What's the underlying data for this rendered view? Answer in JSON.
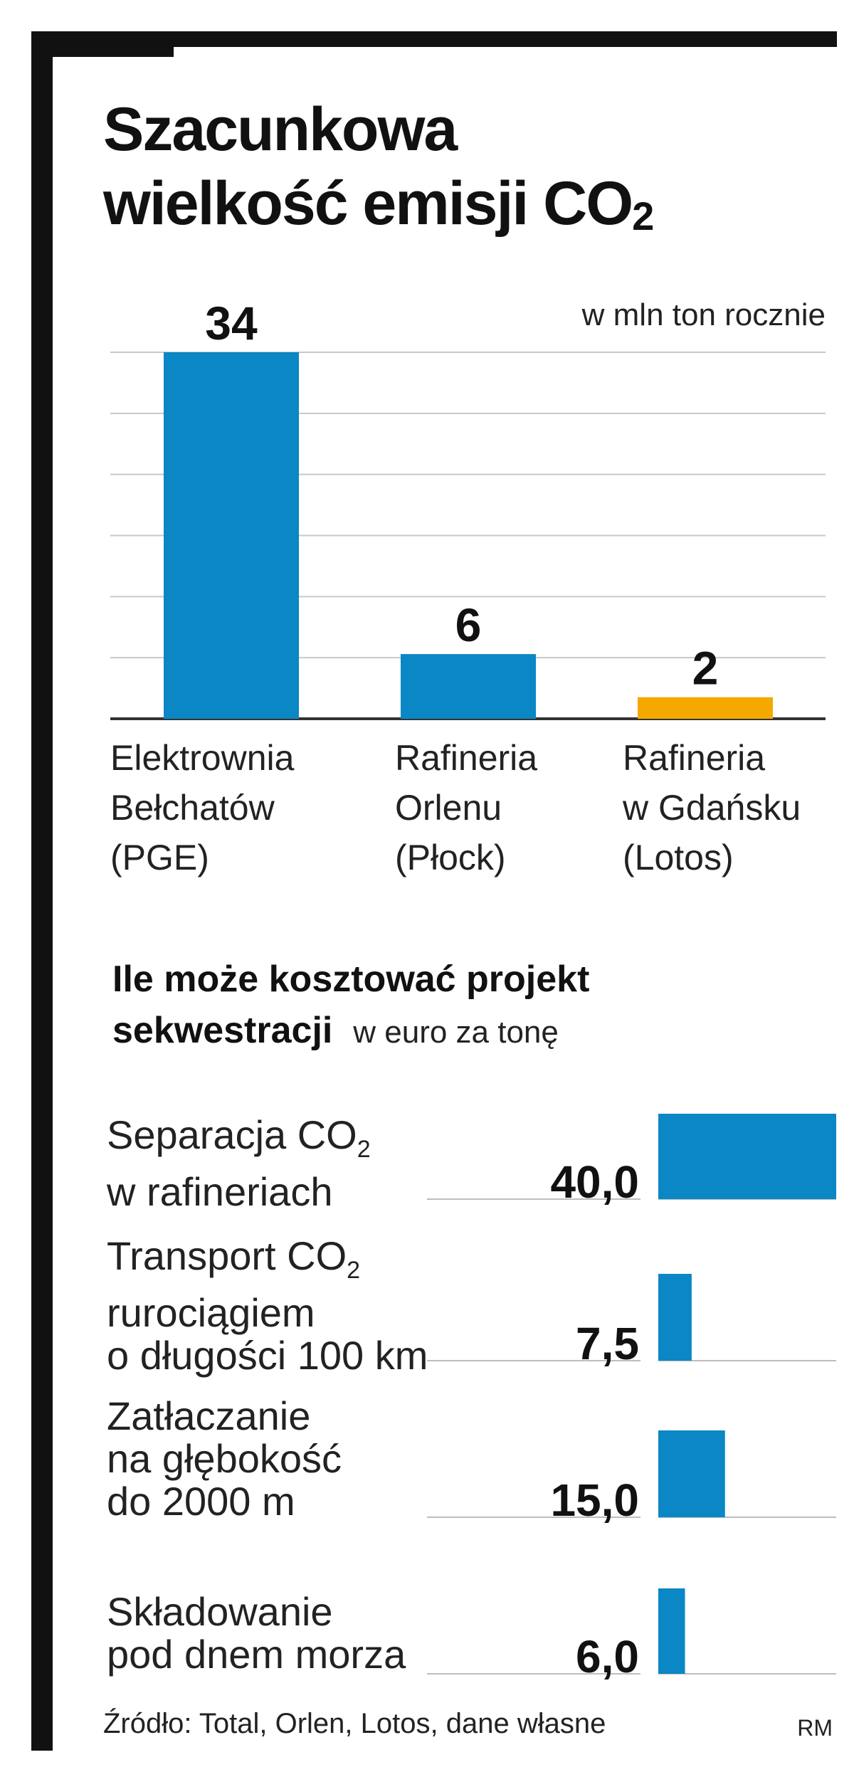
{
  "chart_data": [
    {
      "type": "bar",
      "title": "Szacunkowa wielkość emisji CO2",
      "ylabel": "w mln ton rocznie",
      "categories": [
        "Elektrownia Bełchatów (PGE)",
        "Rafineria Orlenu (Płock)",
        "Rafineria w Gdańsku (Lotos)"
      ],
      "category_lines": [
        [
          "Elektrownia",
          "Bełchatów",
          "(PGE)"
        ],
        [
          "Rafineria",
          "Orlenu",
          "(Płock)"
        ],
        [
          "Rafineria",
          "w Gdańsku",
          "(Lotos)"
        ]
      ],
      "values": [
        34,
        6,
        2
      ],
      "value_labels": [
        "34",
        "6",
        "2"
      ],
      "colors": [
        "#0a87c4",
        "#0a87c4",
        "#f4a800"
      ],
      "ylim": [
        0,
        34
      ],
      "grid": true
    },
    {
      "type": "bar",
      "orientation": "horizontal",
      "title": "Ile może kosztować projekt sekwestracji",
      "title_lines": [
        "Ile może kosztować projekt",
        "sekwestracji"
      ],
      "ylabel": "w euro za tonę",
      "categories": [
        "Separacja CO2 w rafineriach",
        "Transport CO2 rurociągiem o długości 100 km",
        "Zatłaczanie na głębokość do 2000 m",
        "Składowanie pod dnem morza"
      ],
      "values": [
        40.0,
        7.5,
        15.0,
        6.0
      ],
      "value_labels": [
        "40,0",
        "7,5",
        "15,0",
        "6,0"
      ],
      "colors": [
        "#0a87c4",
        "#0a87c4",
        "#0a87c4",
        "#0a87c4"
      ],
      "xlim": [
        0,
        40
      ]
    }
  ],
  "text": {
    "title_line1": "Szacunkowa",
    "title_line2_main": "wielkość emisji CO",
    "title_line2_sub": "2",
    "unit": "w mln ton rocznie",
    "subtitle_line1": "Ile może kosztować projekt",
    "subtitle_line2": "sekwestracji",
    "subtitle_unit": "w euro za tonę",
    "steps": [
      {
        "line1": "Separacja CO",
        "line1_sub": "2",
        "line2": "w rafineriach",
        "line3": ""
      },
      {
        "line1": "Transport CO",
        "line1_sub": "2",
        "line2": "rurociągiem",
        "line3": "o długości 100 km"
      },
      {
        "line1": "Zatłaczanie",
        "line1_sub": "",
        "line2": "na głębokość",
        "line3": "do 2000 m"
      },
      {
        "line1": "Składowanie",
        "line1_sub": "",
        "line2": "pod dnem morza",
        "line3": ""
      }
    ],
    "source": "Źródło: Total, Orlen, Lotos, dane własne",
    "credit": "RM"
  }
}
